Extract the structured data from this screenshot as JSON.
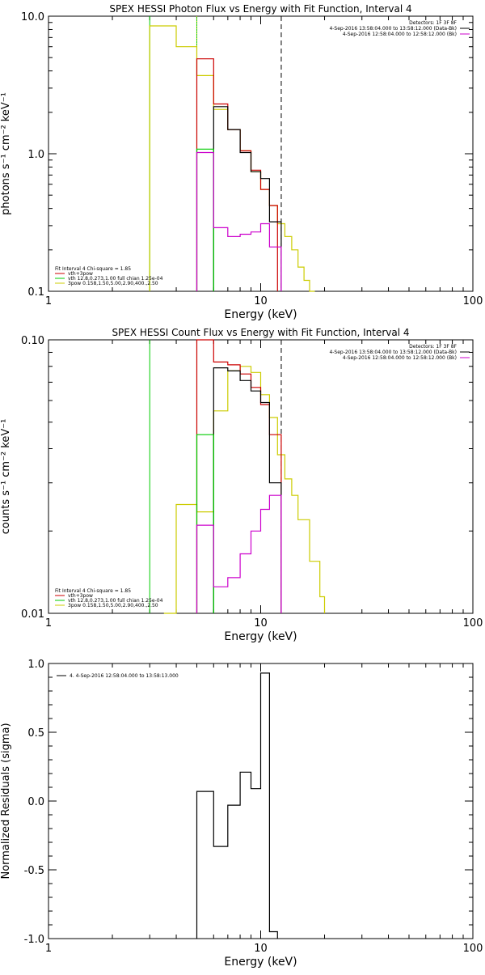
{
  "chart_data": [
    {
      "type": "line",
      "title": "SPEX HESSI Photon Flux vs Energy with Fit Function, Interval 4",
      "xlabel": "Energy (keV)",
      "ylabel": "photons s⁻¹ cm⁻² keV⁻¹",
      "xscale": "log",
      "yscale": "log",
      "xlim": [
        1,
        100
      ],
      "ylim": [
        0.1,
        10
      ],
      "xticks": [
        {
          "v": 1,
          "label": "1"
        },
        {
          "v": 10,
          "label": "10"
        },
        {
          "v": 100,
          "label": "100"
        }
      ],
      "yticks": [
        {
          "v": 0.1,
          "label": "0.1"
        },
        {
          "v": 1,
          "label": "1.0"
        },
        {
          "v": 10,
          "label": "10.0"
        }
      ],
      "info_right": [
        {
          "text": "Detectors: 1F 3F 8F",
          "color": ""
        },
        {
          "text": "4-Sep-2016 13:58:04.000 to 13:58:12.000 (Data-Bk)",
          "color": "#000000"
        },
        {
          "text": "4-Sep-2016 12:58:04.000 to 12:58:12.000 (Bk)",
          "color": "#cc00cc"
        }
      ],
      "info_left": [
        {
          "text": "Fit Interval 4   Chi-square = 1.85",
          "color": ""
        },
        {
          "text": "vth+3pow",
          "color": "#cc0000"
        },
        {
          "text": "vth 12.8,0.273,1.00  full chian 1.25e-04",
          "color": "#00cc00"
        },
        {
          "text": "3pow 0.158,1.50,5.00,2.90,400.,2.50",
          "color": "#cccc00"
        }
      ],
      "vlines": [
        {
          "x": 3.0,
          "color": "#00cc00",
          "dash": ""
        },
        {
          "x": 5.0,
          "color": "#00cc00",
          "dash": ""
        },
        {
          "x": 5.0,
          "color": "#cccc00",
          "dash": "1,2"
        },
        {
          "x": 12.5,
          "color": "#000000",
          "dash": "6,4"
        }
      ],
      "series": [
        {
          "color": "#cccc00",
          "edges": [
            3,
            4,
            5,
            6,
            7,
            8,
            9,
            10,
            11,
            12,
            13,
            14,
            15,
            16,
            17,
            18
          ],
          "values": [
            8.5,
            6.0,
            3.7,
            2.1,
            1.5,
            1.05,
            0.74,
            0.55,
            0.42,
            0.31,
            0.25,
            0.2,
            0.15,
            0.12,
            0.1
          ]
        },
        {
          "color": "#cc0000",
          "edges": [
            5,
            6,
            7,
            8,
            9,
            10,
            11,
            12
          ],
          "values": [
            4.9,
            2.3,
            1.5,
            1.05,
            0.76,
            0.55,
            0.42
          ]
        },
        {
          "color": "#000000",
          "edges": [
            6,
            7,
            8,
            9,
            10,
            11,
            12,
            12.5
          ],
          "values": [
            2.2,
            1.5,
            1.02,
            0.74,
            0.66,
            0.32,
            0.32
          ]
        },
        {
          "color": "#00cc00",
          "edges": [
            5,
            6
          ],
          "values": [
            1.08
          ]
        },
        {
          "color": "#cc00cc",
          "edges": [
            5,
            6,
            7,
            8,
            9,
            10,
            11,
            12,
            12.5
          ],
          "values": [
            1.02,
            0.29,
            0.25,
            0.26,
            0.27,
            0.31,
            0.21,
            0.21
          ]
        }
      ]
    },
    {
      "type": "line",
      "title": "SPEX HESSI Count Flux vs Energy with Fit Function, Interval 4",
      "xlabel": "Energy (keV)",
      "ylabel": "counts s⁻¹ cm⁻² keV⁻¹",
      "xscale": "log",
      "yscale": "log",
      "xlim": [
        1,
        100
      ],
      "ylim": [
        0.01,
        0.1
      ],
      "xticks": [
        {
          "v": 1,
          "label": "1"
        },
        {
          "v": 10,
          "label": "10"
        },
        {
          "v": 100,
          "label": "100"
        }
      ],
      "yticks": [
        {
          "v": 0.01,
          "label": "0.01"
        },
        {
          "v": 0.1,
          "label": "0.10"
        }
      ],
      "info_right": [
        {
          "text": "Detectors: 1F 3F 8F",
          "color": ""
        },
        {
          "text": "4-Sep-2016 13:58:04.000 to 13:58:12.000 (Data-Bk)",
          "color": "#000000"
        },
        {
          "text": "4-Sep-2016 12:58:04.000 to 12:58:12.000 (Bk)",
          "color": "#cc00cc"
        }
      ],
      "info_left": [
        {
          "text": "Fit Interval 4   Chi-square = 1.85",
          "color": ""
        },
        {
          "text": "vth+3pow",
          "color": "#cc0000"
        },
        {
          "text": "vth 12.8,0.273,1.00  full chian 1.25e-04",
          "color": "#00cc00"
        },
        {
          "text": "3pow 0.158,1.50,5.00,2.90,400.,2.50",
          "color": "#cccc00"
        }
      ],
      "vlines": [
        {
          "x": 3.0,
          "color": "#00cc00",
          "dash": ""
        },
        {
          "x": 5.0,
          "color": "#00cc00",
          "dash": ""
        },
        {
          "x": 5.0,
          "color": "#cccc00",
          "dash": "1,2"
        },
        {
          "x": 12.5,
          "color": "#000000",
          "dash": "6,4"
        }
      ],
      "series": [
        {
          "color": "#cccc00",
          "edges": [
            3.5,
            4,
            5,
            6,
            7,
            8,
            9,
            10,
            11,
            12,
            13,
            14,
            15,
            17,
            19,
            20
          ],
          "values": [
            0.0095,
            0.025,
            0.0235,
            0.055,
            0.077,
            0.08,
            0.076,
            0.063,
            0.052,
            0.038,
            0.031,
            0.027,
            0.022,
            0.0155,
            0.0115
          ]
        },
        {
          "color": "#cc0000",
          "edges": [
            5,
            6,
            7,
            8,
            9,
            10,
            11,
            12,
            12.5
          ],
          "values": [
            0.102,
            0.083,
            0.081,
            0.075,
            0.067,
            0.058,
            0.045,
            0.045
          ]
        },
        {
          "color": "#000000",
          "edges": [
            6,
            7,
            8,
            9,
            10,
            11,
            12,
            12.5
          ],
          "values": [
            0.079,
            0.077,
            0.071,
            0.065,
            0.059,
            0.03,
            0.03
          ]
        },
        {
          "color": "#00cc00",
          "edges": [
            5,
            6
          ],
          "values": [
            0.045
          ]
        },
        {
          "color": "#cc00cc",
          "edges": [
            5,
            6,
            7,
            8,
            9,
            10,
            11,
            12,
            12.5
          ],
          "values": [
            0.021,
            0.0125,
            0.0135,
            0.0165,
            0.02,
            0.024,
            0.027,
            0.027
          ]
        }
      ]
    },
    {
      "type": "line",
      "title": "",
      "xlabel": "Energy (keV)",
      "ylabel": "Normalized Residuals (sigma)",
      "xscale": "log",
      "yscale": "linear",
      "xlim": [
        1,
        100
      ],
      "ylim": [
        -1.0,
        1.0
      ],
      "xticks": [
        {
          "v": 1,
          "label": "1"
        },
        {
          "v": 10,
          "label": "10"
        },
        {
          "v": 100,
          "label": "100"
        }
      ],
      "yticks": [
        {
          "v": -1.0,
          "label": "-1.0"
        },
        {
          "v": -0.5,
          "label": "-0.5"
        },
        {
          "v": 0.0,
          "label": "0.0"
        },
        {
          "v": 0.5,
          "label": "0.5"
        },
        {
          "v": 1.0,
          "label": "1.0"
        }
      ],
      "legend_line": {
        "text": "4.  4-Sep-2016 12:58:04.000 to 13:58:13.000",
        "color": "#000000"
      },
      "series": [
        {
          "color": "#000000",
          "edges": [
            5,
            6,
            7,
            8,
            9,
            10,
            11,
            12
          ],
          "values": [
            0.07,
            -0.33,
            -0.03,
            0.21,
            0.09,
            0.93,
            -0.95
          ]
        }
      ]
    }
  ]
}
